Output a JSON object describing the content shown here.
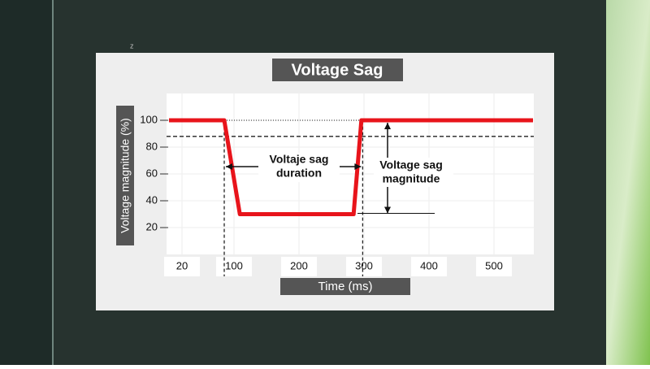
{
  "slide": {
    "mark": "z"
  },
  "chart_data": {
    "type": "line",
    "title": "Voltage Sag",
    "xlabel": "Time (ms)",
    "ylabel": "Voltage magnitude (%)",
    "x": [
      0,
      85,
      109,
      284,
      296,
      560
    ],
    "series": [
      {
        "color": "#e8141b",
        "values": [
          100,
          100,
          30,
          30,
          100,
          100
        ]
      }
    ],
    "xlim": [
      0,
      560
    ],
    "ylim": [
      0,
      120
    ],
    "xticks": [
      20,
      100,
      200,
      300,
      400,
      500
    ],
    "yticks": [
      20,
      40,
      60,
      80,
      100
    ],
    "grid": true,
    "hlines": [
      {
        "value": 100,
        "style": "dotted"
      },
      {
        "value": 88,
        "style": "dashed"
      }
    ],
    "vlines": [
      85,
      298
    ],
    "annotations": [
      [
        "Voltaje sag",
        "duration"
      ],
      [
        "Voltage sag",
        "magnitude"
      ]
    ]
  }
}
